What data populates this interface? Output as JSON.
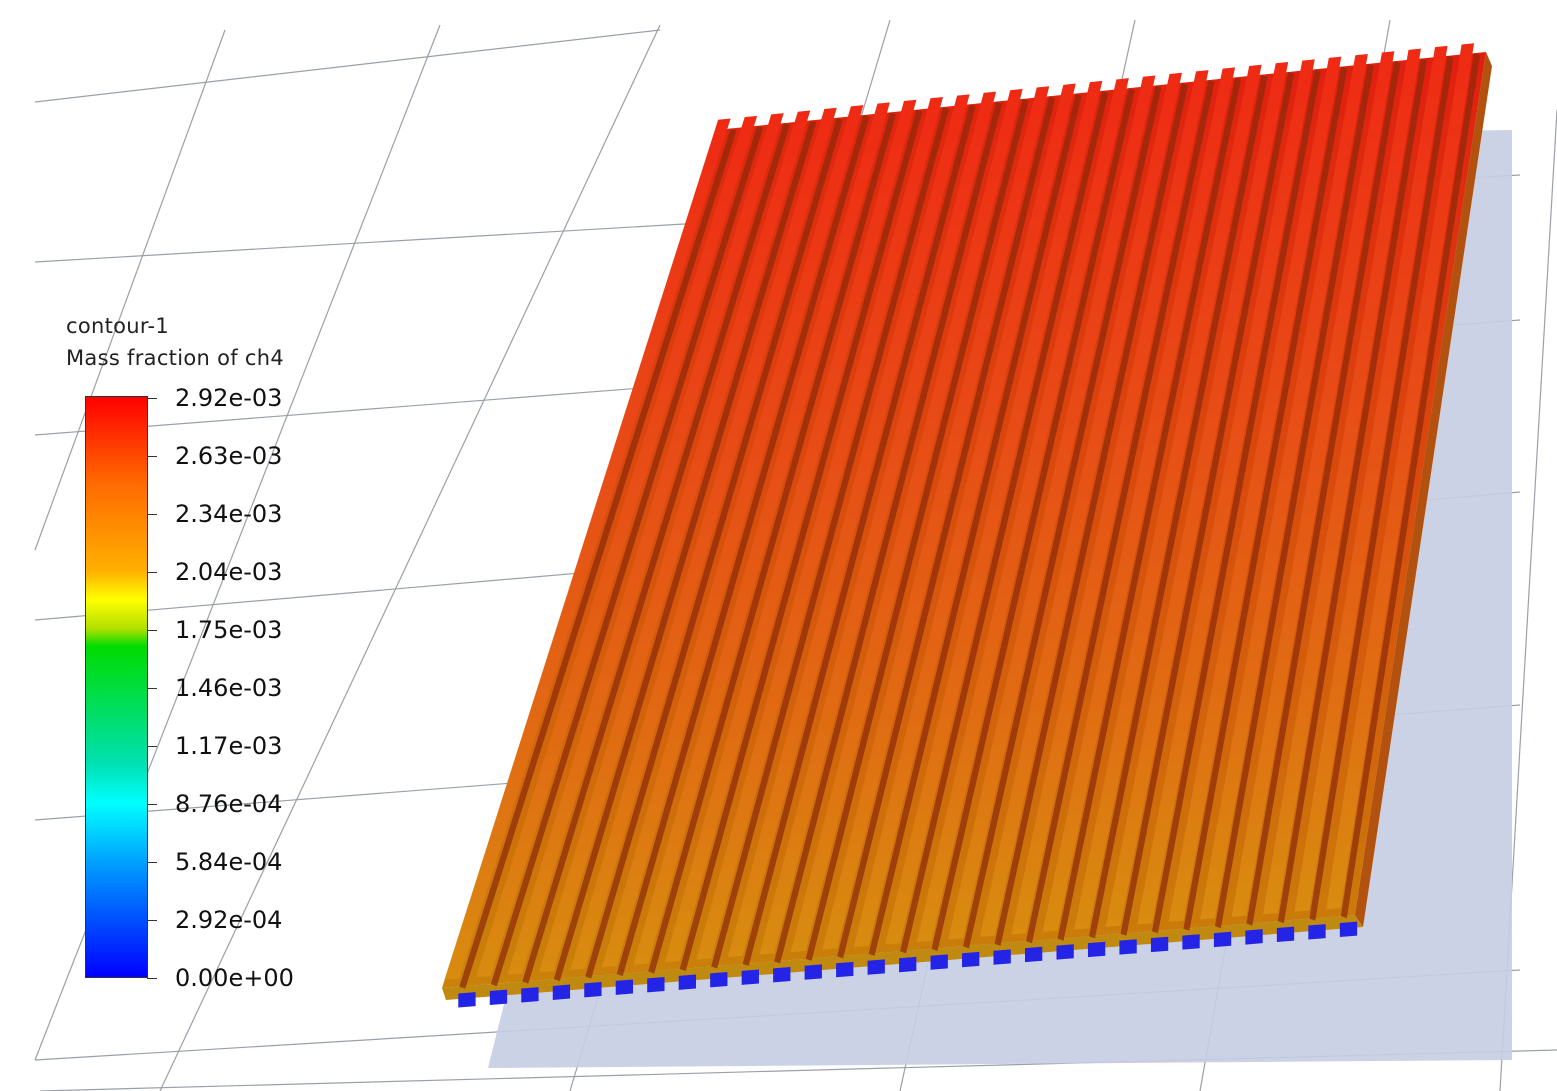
{
  "legend": {
    "title": "contour-1",
    "subtitle": "Mass fraction of ch4",
    "levels": [
      "2.92e-03",
      "2.63e-03",
      "2.34e-03",
      "2.04e-03",
      "1.75e-03",
      "1.46e-03",
      "1.17e-03",
      "8.76e-04",
      "5.84e-04",
      "2.92e-04",
      "0.00e+00"
    ],
    "colormap": [
      "#ff0000",
      "#ff7a00",
      "#ffd400",
      "#ffff00",
      "#00d400",
      "#00ffff",
      "#0000ff"
    ]
  },
  "model": {
    "channel_count": 29,
    "top_colors": [
      "#e83a12",
      "#e0420f",
      "#d2560e",
      "#cc6e0c",
      "#c97a0b"
    ],
    "inlet_color": "#2424e6",
    "shadow_color": "#c6cde3"
  },
  "scene": {
    "background": "#ffffff",
    "grid_color": "#9aa0a8"
  }
}
